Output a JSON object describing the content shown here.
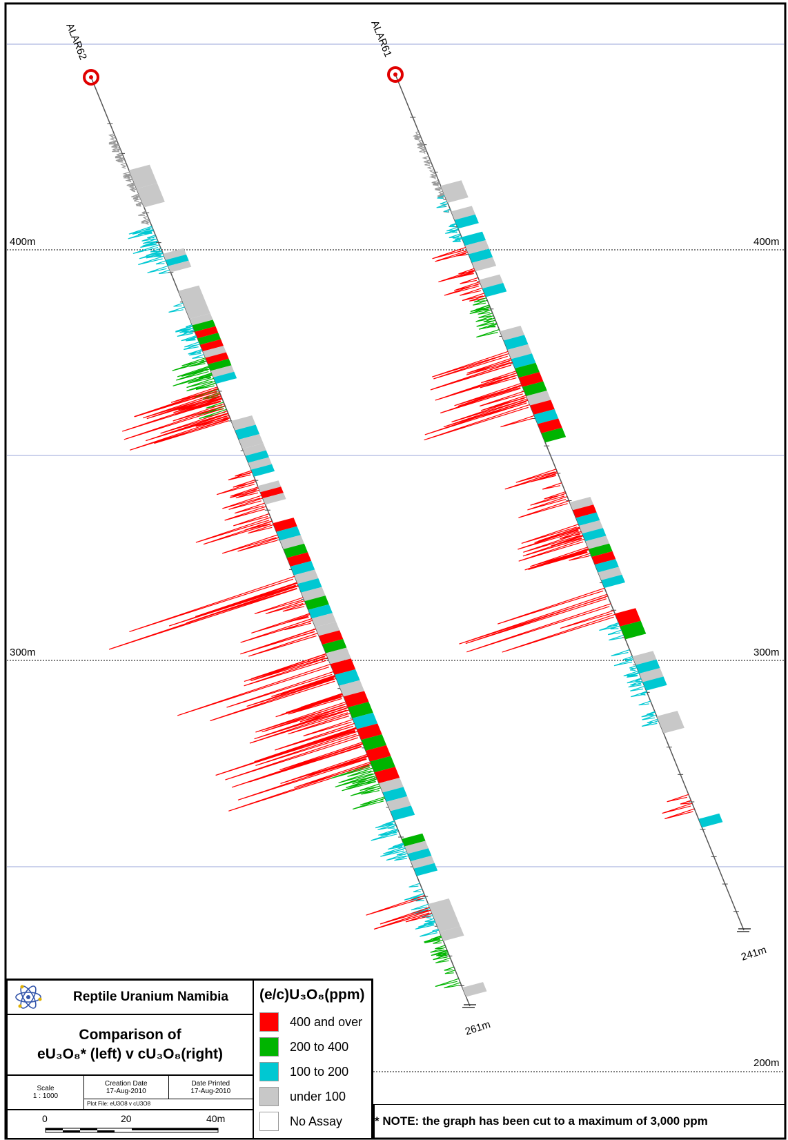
{
  "drillholes": [
    {
      "name": "ALAR62",
      "end_label": "261m"
    },
    {
      "name": "ALAR61",
      "end_label": "241m"
    }
  ],
  "elevation_labels": {
    "left": [
      "400m",
      "300m"
    ],
    "right": [
      "400m",
      "300m",
      "200m"
    ]
  },
  "title_block": {
    "company": "Reptile Uranium Namibia",
    "title_line1": "Comparison of",
    "title_line2": "eU₃O₈* (left) v cU₃O₈(right)",
    "scale_label": "Scale",
    "scale_value": "1 : 1000",
    "creation_date_label": "Creation Date",
    "creation_date": "17-Aug-2010",
    "date_printed_label": "Date Printed",
    "date_printed": "17-Aug-2010",
    "plot_file": "Plot File: eU3O8 v cU3O8",
    "scalebar_ticks": [
      "0",
      "20",
      "40m"
    ]
  },
  "legend": {
    "title": "(e/c)U₃O₈(ppm)",
    "items": [
      {
        "label": "400 and over",
        "color": "#ff0000"
      },
      {
        "label": "200 to 400",
        "color": "#00b400"
      },
      {
        "label": "100 to 200",
        "color": "#00c8d2"
      },
      {
        "label": "under 100",
        "color": "#c8c8c8"
      },
      {
        "label": "No Assay",
        "color": "#ffffff"
      }
    ]
  },
  "note": "* NOTE: the graph has been cut to a maximum of 3,000 ppm"
}
